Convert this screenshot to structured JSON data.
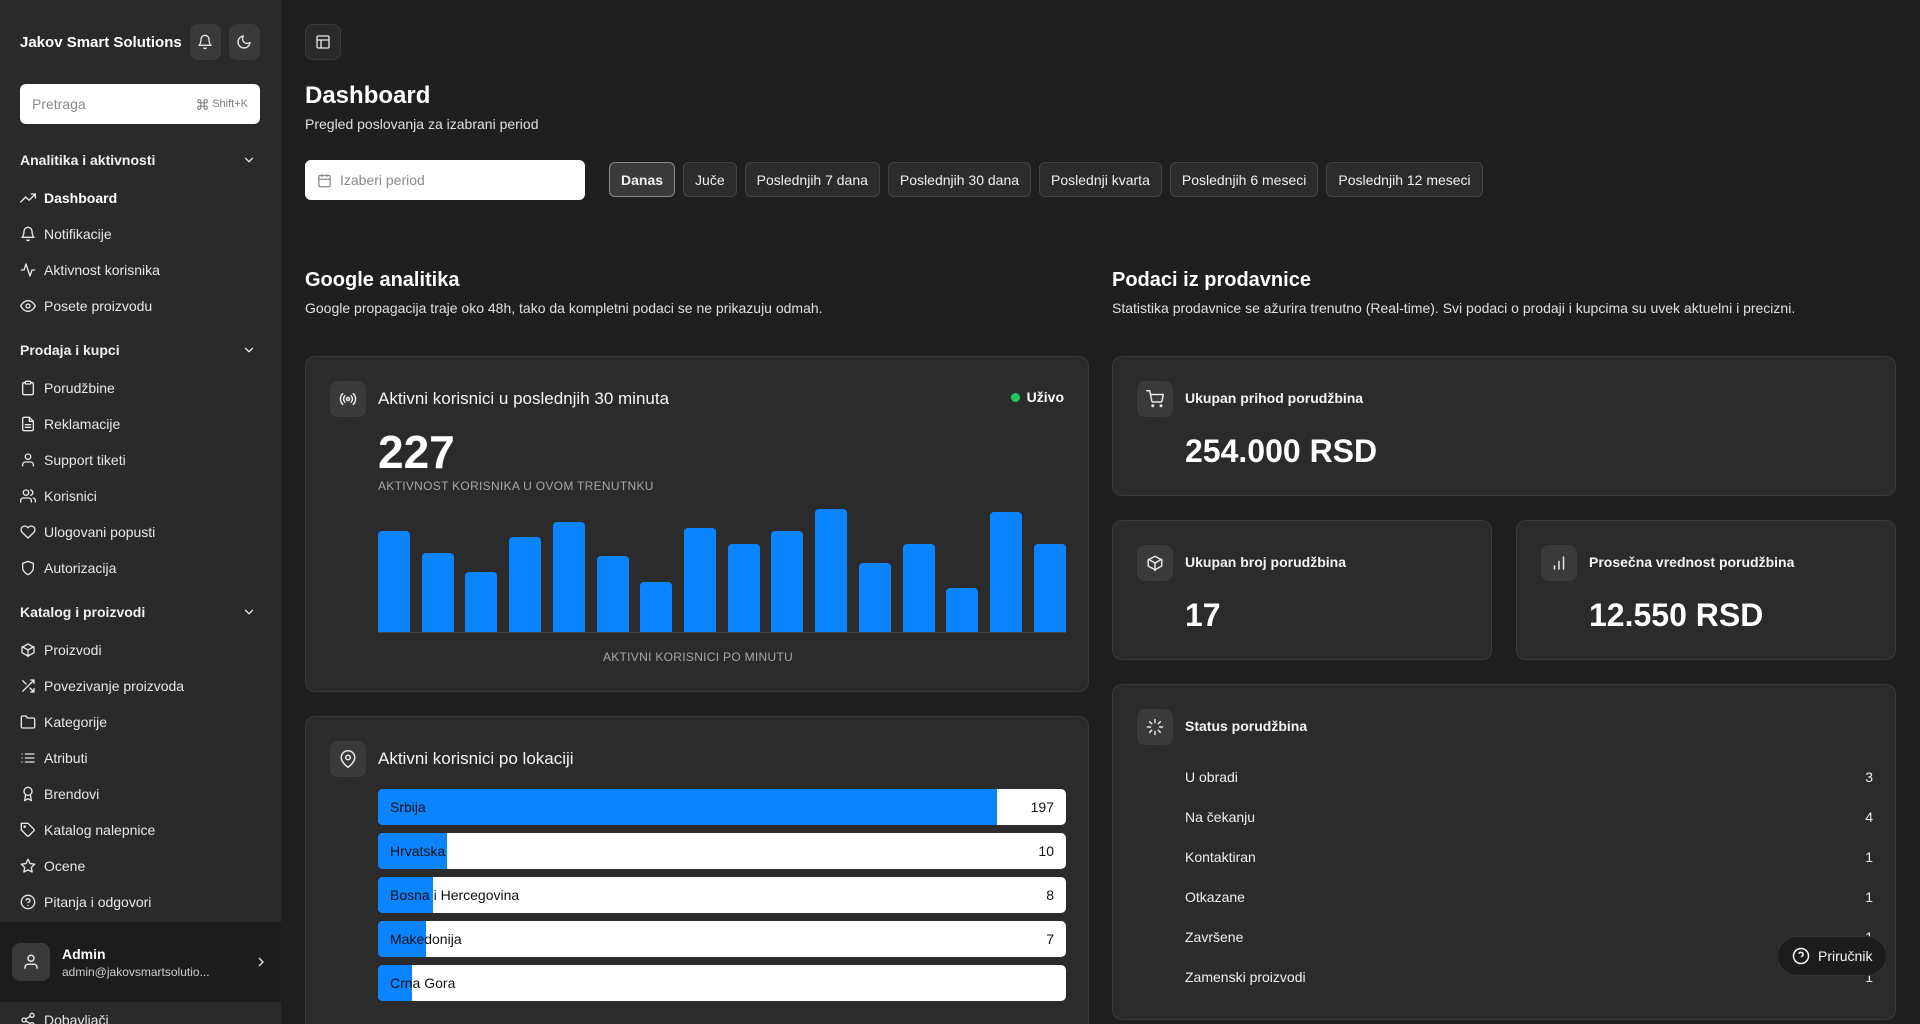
{
  "sidebar": {
    "brand": "Jakov Smart Solutions",
    "search": {
      "placeholder": "Pretraga",
      "shortcut": "Shift+K"
    },
    "groups": [
      {
        "title": "Analitika i aktivnosti",
        "items": [
          {
            "label": "Dashboard",
            "icon": "trending-up-icon",
            "active": true
          },
          {
            "label": "Notifikacije",
            "icon": "bell-icon"
          },
          {
            "label": "Aktivnost korisnika",
            "icon": "activity-icon"
          },
          {
            "label": "Posete proizvodu",
            "icon": "eye-icon"
          }
        ]
      },
      {
        "title": "Prodaja i kupci",
        "items": [
          {
            "label": "Porudžbine",
            "icon": "clipboard-icon"
          },
          {
            "label": "Reklamacije",
            "icon": "file-text-icon"
          },
          {
            "label": "Support tiketi",
            "icon": "user-icon"
          },
          {
            "label": "Korisnici",
            "icon": "users-icon"
          },
          {
            "label": "Ulogovani popusti",
            "icon": "heart-icon"
          },
          {
            "label": "Autorizacija",
            "icon": "shield-icon"
          }
        ]
      },
      {
        "title": "Katalog i proizvodi",
        "items": [
          {
            "label": "Proizvodi",
            "icon": "box-icon"
          },
          {
            "label": "Povezivanje proizvoda",
            "icon": "shuffle-icon"
          },
          {
            "label": "Kategorije",
            "icon": "folder-icon"
          },
          {
            "label": "Atributi",
            "icon": "list-icon"
          },
          {
            "label": "Brendovi",
            "icon": "award-icon"
          },
          {
            "label": "Katalog nalepnice",
            "icon": "tag-icon"
          },
          {
            "label": "Ocene",
            "icon": "star-icon"
          },
          {
            "label": "Pitanja i odgovori",
            "icon": "help-circle-icon"
          }
        ]
      }
    ],
    "user": {
      "name": "Admin",
      "email": "admin@jakovsmartsolutio..."
    },
    "bottom_item": "Dobavljači"
  },
  "header": {
    "title": "Dashboard",
    "subtitle": "Pregled poslovanja za izabrani period",
    "period_placeholder": "Izaberi period",
    "chips": [
      "Danas",
      "Juče",
      "Poslednjih 7 dana",
      "Poslednjih 30 dana",
      "Poslednji kvarta",
      "Poslednjih 6 meseci",
      "Poslednjih 12 meseci"
    ],
    "active_chip": "Danas"
  },
  "google": {
    "title": "Google analitika",
    "subtitle": "Google propagacija traje oko 48h, tako da kompletni podaci se ne prikazuju odmah.",
    "active_card": {
      "title": "Aktivni korisnici u poslednjih 30 minuta",
      "live_label": "Uživo",
      "count": "227",
      "count_caption": "AKTIVNOST KORISNIKA U OVOM TRENUTNKU",
      "chart_caption": "AKTIVNI KORISNICI PO MINUTU"
    },
    "location_card": {
      "title": "Aktivni korisnici po lokaciji"
    }
  },
  "chart_data": {
    "type": "bar",
    "xlabel": "AKTIVNI KORISNICI PO MINUTU",
    "values": [
      16,
      12.5,
      9.5,
      15,
      17.5,
      12,
      8,
      16.5,
      14,
      16,
      19.5,
      11,
      14,
      7,
      19,
      14
    ],
    "ylim": [
      0,
      20
    ]
  },
  "locations": [
    {
      "name": "Srbija",
      "value": "197",
      "share": 0.9
    },
    {
      "name": "Hrvatska",
      "value": "10",
      "share": 0.1
    },
    {
      "name": "Bosna i Hercegovina",
      "value": "8",
      "share": 0.08
    },
    {
      "name": "Makedonija",
      "value": "7",
      "share": 0.07
    },
    {
      "name": "Crna Gora",
      "value": "",
      "share": 0.05
    }
  ],
  "store": {
    "title": "Podaci iz prodavnice",
    "subtitle": "Statistika prodavnice se ažurira trenutno (Real-time). Svi podaci o prodaji i kupcima su uvek aktuelni i precizni.",
    "revenue": {
      "title": "Ukupan prihod porudžbina",
      "value": "254.000 RSD"
    },
    "orders": {
      "title": "Ukupan broj porudžbina",
      "value": "17"
    },
    "avg": {
      "title": "Prosečna vrednost porudžbina",
      "value": "12.550 RSD"
    },
    "status": {
      "title": "Status porudžbina",
      "rows": [
        {
          "label": "U obradi",
          "value": "3"
        },
        {
          "label": "Na čekanju",
          "value": "4"
        },
        {
          "label": "Kontaktiran",
          "value": "1"
        },
        {
          "label": "Otkazane",
          "value": "1"
        },
        {
          "label": "Završene",
          "value": "1"
        },
        {
          "label": "Zamenski proizvodi",
          "value": "1"
        }
      ]
    }
  },
  "help_label": "Priručnik",
  "colors": {
    "accent": "#0a84ff",
    "live": "#22c55e",
    "background": "#1f1f1f",
    "card": "#2b2b2b",
    "sidebar": "#2a2a2a"
  }
}
